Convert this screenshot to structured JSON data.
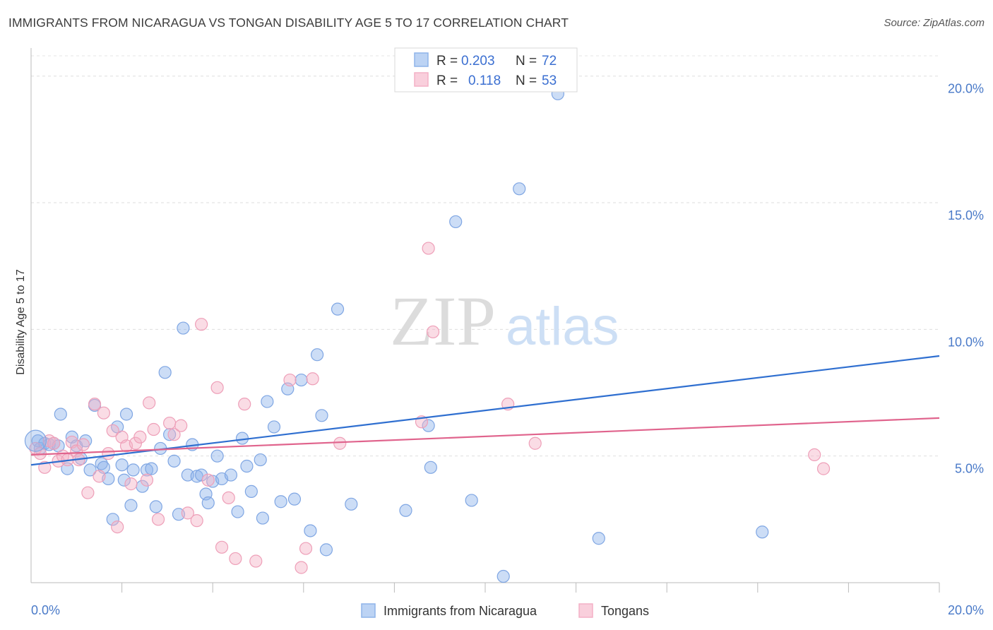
{
  "header": {
    "title": "IMMIGRANTS FROM NICARAGUA VS TONGAN DISABILITY AGE 5 TO 17 CORRELATION CHART",
    "source": "Source: ZipAtlas.com"
  },
  "watermark": {
    "zip": "ZIP",
    "atlas": "atlas"
  },
  "legend": {
    "rows": [
      {
        "r_label": "R =",
        "r_value": "0.203",
        "n_label": "N =",
        "n_value": "72"
      },
      {
        "r_label": "R =",
        "r_value": "0.118",
        "n_label": "N =",
        "n_value": "53"
      }
    ]
  },
  "chart_data": {
    "type": "scatter",
    "title": "IMMIGRANTS FROM NICARAGUA VS TONGAN DISABILITY AGE 5 TO 17 CORRELATION CHART",
    "xlabel": "",
    "ylabel": "Disability Age 5 to 17",
    "xlim": [
      0,
      20
    ],
    "ylim": [
      0,
      20.8
    ],
    "x_tick_labels": [
      "0.0%",
      "20.0%"
    ],
    "y_ticks": [
      5,
      10,
      15,
      20
    ],
    "y_tick_labels": [
      "5.0%",
      "10.0%",
      "15.0%",
      "20.0%"
    ],
    "grid": true,
    "legend_position": "top-center",
    "series": [
      {
        "name": "Immigrants from Nicaragua",
        "color": "#8fb4ea",
        "line_color": "#2f6fd0",
        "R": 0.203,
        "N": 72,
        "trend": [
          [
            0,
            4.65
          ],
          [
            20,
            8.95
          ]
        ],
        "points": [
          [
            0.15,
            5.6
          ],
          [
            0.2,
            5.3
          ],
          [
            0.3,
            5.5
          ],
          [
            0.4,
            5.45
          ],
          [
            0.5,
            5.5
          ],
          [
            0.6,
            5.4
          ],
          [
            0.65,
            6.65
          ],
          [
            0.8,
            4.5
          ],
          [
            0.9,
            5.75
          ],
          [
            1.0,
            5.4
          ],
          [
            1.1,
            4.9
          ],
          [
            1.2,
            5.6
          ],
          [
            1.3,
            4.45
          ],
          [
            1.4,
            7.0
          ],
          [
            1.55,
            4.7
          ],
          [
            1.6,
            4.55
          ],
          [
            1.7,
            4.1
          ],
          [
            1.8,
            2.5
          ],
          [
            1.9,
            6.15
          ],
          [
            2.0,
            4.65
          ],
          [
            2.05,
            4.05
          ],
          [
            2.1,
            6.65
          ],
          [
            2.2,
            3.05
          ],
          [
            2.25,
            4.45
          ],
          [
            2.45,
            3.8
          ],
          [
            2.55,
            4.45
          ],
          [
            2.65,
            4.5
          ],
          [
            2.75,
            3.0
          ],
          [
            2.85,
            5.3
          ],
          [
            2.95,
            8.3
          ],
          [
            3.05,
            5.85
          ],
          [
            3.15,
            4.8
          ],
          [
            3.25,
            2.7
          ],
          [
            3.35,
            10.05
          ],
          [
            3.45,
            4.25
          ],
          [
            3.55,
            5.45
          ],
          [
            3.65,
            4.2
          ],
          [
            3.75,
            4.25
          ],
          [
            3.85,
            3.5
          ],
          [
            3.9,
            3.15
          ],
          [
            4.0,
            4.0
          ],
          [
            4.1,
            5.0
          ],
          [
            4.2,
            4.1
          ],
          [
            4.4,
            4.25
          ],
          [
            4.55,
            2.8
          ],
          [
            4.65,
            5.7
          ],
          [
            4.75,
            4.6
          ],
          [
            4.85,
            3.6
          ],
          [
            5.05,
            4.85
          ],
          [
            5.1,
            2.55
          ],
          [
            5.2,
            7.15
          ],
          [
            5.35,
            6.15
          ],
          [
            5.5,
            3.2
          ],
          [
            5.65,
            7.65
          ],
          [
            5.8,
            3.3
          ],
          [
            5.95,
            8.0
          ],
          [
            6.15,
            2.05
          ],
          [
            6.3,
            9.0
          ],
          [
            6.4,
            6.6
          ],
          [
            6.5,
            1.3
          ],
          [
            6.75,
            10.8
          ],
          [
            7.05,
            3.1
          ],
          [
            8.25,
            2.85
          ],
          [
            8.75,
            6.2
          ],
          [
            8.8,
            4.55
          ],
          [
            9.35,
            14.25
          ],
          [
            9.7,
            3.25
          ],
          [
            10.4,
            0.25
          ],
          [
            10.75,
            15.55
          ],
          [
            11.6,
            19.3
          ],
          [
            12.5,
            1.75
          ],
          [
            16.1,
            2.0
          ]
        ]
      },
      {
        "name": "Tongans",
        "color": "#f4b1c6",
        "line_color": "#e0648d",
        "R": 0.118,
        "N": 53,
        "trend": [
          [
            0,
            5.05
          ],
          [
            20,
            6.5
          ]
        ],
        "points": [
          [
            0.1,
            5.3
          ],
          [
            0.2,
            5.1
          ],
          [
            0.3,
            4.55
          ],
          [
            0.4,
            5.6
          ],
          [
            0.5,
            5.5
          ],
          [
            0.6,
            4.8
          ],
          [
            0.7,
            5.0
          ],
          [
            0.8,
            4.85
          ],
          [
            0.9,
            5.55
          ],
          [
            1.0,
            5.2
          ],
          [
            1.05,
            4.85
          ],
          [
            1.15,
            5.45
          ],
          [
            1.25,
            3.55
          ],
          [
            1.4,
            7.05
          ],
          [
            1.5,
            4.2
          ],
          [
            1.6,
            6.7
          ],
          [
            1.7,
            5.1
          ],
          [
            1.8,
            6.0
          ],
          [
            1.9,
            2.2
          ],
          [
            2.0,
            5.75
          ],
          [
            2.1,
            5.4
          ],
          [
            2.2,
            3.9
          ],
          [
            2.3,
            5.5
          ],
          [
            2.4,
            5.75
          ],
          [
            2.55,
            4.05
          ],
          [
            2.6,
            7.1
          ],
          [
            2.7,
            6.05
          ],
          [
            2.8,
            2.5
          ],
          [
            3.05,
            6.3
          ],
          [
            3.15,
            5.85
          ],
          [
            3.3,
            6.2
          ],
          [
            3.45,
            2.75
          ],
          [
            3.65,
            2.45
          ],
          [
            3.75,
            10.2
          ],
          [
            3.9,
            4.05
          ],
          [
            4.1,
            7.7
          ],
          [
            4.2,
            1.4
          ],
          [
            4.35,
            3.35
          ],
          [
            4.5,
            0.95
          ],
          [
            4.7,
            7.05
          ],
          [
            4.95,
            0.85
          ],
          [
            5.7,
            8.0
          ],
          [
            5.95,
            0.6
          ],
          [
            6.05,
            1.35
          ],
          [
            6.2,
            8.05
          ],
          [
            6.8,
            5.5
          ],
          [
            8.6,
            6.35
          ],
          [
            8.75,
            13.2
          ],
          [
            8.85,
            9.9
          ],
          [
            10.5,
            7.05
          ],
          [
            11.1,
            5.5
          ],
          [
            17.25,
            5.05
          ],
          [
            17.45,
            4.5
          ]
        ]
      }
    ]
  },
  "bottom_legend": {
    "items": [
      {
        "label": "Immigrants from Nicaragua"
      },
      {
        "label": "Tongans"
      }
    ]
  }
}
